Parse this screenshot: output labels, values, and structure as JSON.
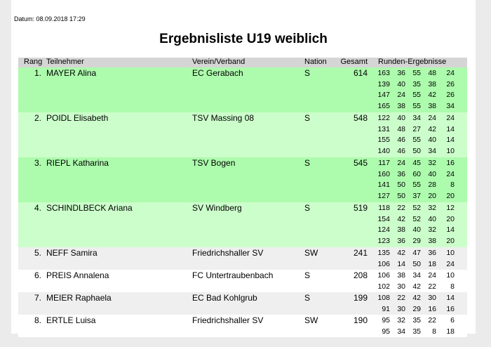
{
  "header": {
    "datum": "Datum: 08.09.2018 17:29",
    "title": "Ergebnisliste U19 weiblich"
  },
  "columns": {
    "rang": "Rang",
    "teilnehmer": "Teilnehmer",
    "verein": "Verein/Verband",
    "nation": "Nation",
    "gesamt": "Gesamt",
    "runden": "Runden-Ergebnisse"
  },
  "colors": {
    "bright_green": "#adfbad",
    "light_green": "#ccfecb",
    "gray_row": "#efefef",
    "white_row": "#ffffff",
    "header_gray": "#d5d5d5"
  },
  "rows": [
    {
      "rank": "1.",
      "name": "MAYER Alina",
      "club": "EC Gerabach",
      "nation": "S",
      "total": "614",
      "bg": "#adfbad",
      "rounds": [
        [
          "163",
          "36",
          "55",
          "48",
          "24"
        ],
        [
          "139",
          "40",
          "35",
          "38",
          "26"
        ],
        [
          "147",
          "24",
          "55",
          "42",
          "26"
        ],
        [
          "165",
          "38",
          "55",
          "38",
          "34"
        ]
      ]
    },
    {
      "rank": "2.",
      "name": "POIDL Elisabeth",
      "club": "TSV Massing 08",
      "nation": "S",
      "total": "548",
      "bg": "#ccfecb",
      "rounds": [
        [
          "122",
          "40",
          "34",
          "24",
          "24"
        ],
        [
          "131",
          "48",
          "27",
          "42",
          "14"
        ],
        [
          "155",
          "46",
          "55",
          "40",
          "14"
        ],
        [
          "140",
          "46",
          "50",
          "34",
          "10"
        ]
      ]
    },
    {
      "rank": "3.",
      "name": "RIEPL Katharina",
      "club": "TSV Bogen",
      "nation": "S",
      "total": "545",
      "bg": "#adfbad",
      "rounds": [
        [
          "117",
          "24",
          "45",
          "32",
          "16"
        ],
        [
          "160",
          "36",
          "60",
          "40",
          "24"
        ],
        [
          "141",
          "50",
          "55",
          "28",
          "8"
        ],
        [
          "127",
          "50",
          "37",
          "20",
          "20"
        ]
      ]
    },
    {
      "rank": "4.",
      "name": "SCHINDLBECK Ariana",
      "club": "SV Windberg",
      "nation": "S",
      "total": "519",
      "bg": "#ccfecb",
      "rounds": [
        [
          "118",
          "22",
          "52",
          "32",
          "12"
        ],
        [
          "154",
          "42",
          "52",
          "40",
          "20"
        ],
        [
          "124",
          "38",
          "40",
          "32",
          "14"
        ],
        [
          "123",
          "36",
          "29",
          "38",
          "20"
        ]
      ]
    },
    {
      "rank": "5.",
      "name": "NEFF Samira",
      "club": "Friedrichshaller SV",
      "nation": "SW",
      "total": "241",
      "bg": "#efefef",
      "rounds": [
        [
          "135",
          "42",
          "47",
          "36",
          "10"
        ],
        [
          "106",
          "14",
          "50",
          "18",
          "24"
        ]
      ]
    },
    {
      "rank": "6.",
      "name": "PREIS Annalena",
      "club": "FC Untertraubenbach",
      "nation": "S",
      "total": "208",
      "bg": "#ffffff",
      "rounds": [
        [
          "106",
          "38",
          "34",
          "24",
          "10"
        ],
        [
          "102",
          "30",
          "42",
          "22",
          "8"
        ]
      ]
    },
    {
      "rank": "7.",
      "name": "MEIER Raphaela",
      "club": "EC Bad Kohlgrub",
      "nation": "S",
      "total": "199",
      "bg": "#efefef",
      "rounds": [
        [
          "108",
          "22",
          "42",
          "30",
          "14"
        ],
        [
          "91",
          "30",
          "29",
          "16",
          "16"
        ]
      ]
    },
    {
      "rank": "8.",
      "name": "ERTLE Luisa",
      "club": "Friedrichshaller SV",
      "nation": "SW",
      "total": "190",
      "bg": "#ffffff",
      "rounds": [
        [
          "95",
          "32",
          "35",
          "22",
          "6"
        ],
        [
          "95",
          "34",
          "35",
          "8",
          "18"
        ]
      ]
    }
  ]
}
